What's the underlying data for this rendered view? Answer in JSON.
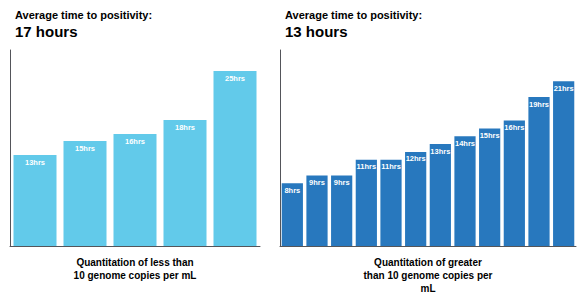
{
  "chart_data": [
    {
      "type": "bar",
      "title": "Average time to positivity:",
      "subtitle": "17 hours",
      "xlabel": "Quantitation of less than\n10 genome copies per mL",
      "categories": [
        null,
        null,
        null,
        null,
        null
      ],
      "values": [
        13,
        15,
        16,
        18,
        25
      ],
      "value_labels": [
        "13hrs",
        "15hrs",
        "16hrs",
        "18hrs",
        "25hrs"
      ],
      "data_labels": true,
      "color": "#62CAEA",
      "ylim": [
        0,
        28
      ],
      "tick_labels": false,
      "grid": false
    },
    {
      "type": "bar",
      "title": "Average time to positivity:",
      "subtitle": "13 hours",
      "xlabel": "Quantitation of greater\nthan 10 genome copies per\nmL",
      "categories": [
        null,
        null,
        null,
        null,
        null,
        null,
        null,
        null,
        null,
        null,
        null,
        null
      ],
      "values": [
        8,
        9,
        9,
        11,
        11,
        12,
        13,
        14,
        15,
        16,
        19,
        21
      ],
      "value_labels": [
        "8hrs",
        "9hrs",
        "9hrs",
        "11hrs",
        "11hrs",
        "12hrs",
        "13hrs",
        "14hrs",
        "15hrs",
        "16hrs",
        "19hrs",
        "21hrs"
      ],
      "data_labels": true,
      "colors": [
        "#2878BE",
        "#2878BE",
        "#2878BE",
        "#2878BE",
        "#2878BE",
        "#2878BE",
        "#2878BE",
        "#2878BE",
        "#2878BE",
        "#2878BE",
        "#2878BE",
        "#2878BE"
      ],
      "ylim": [
        0,
        25
      ],
      "tick_labels": false,
      "grid": false
    }
  ]
}
